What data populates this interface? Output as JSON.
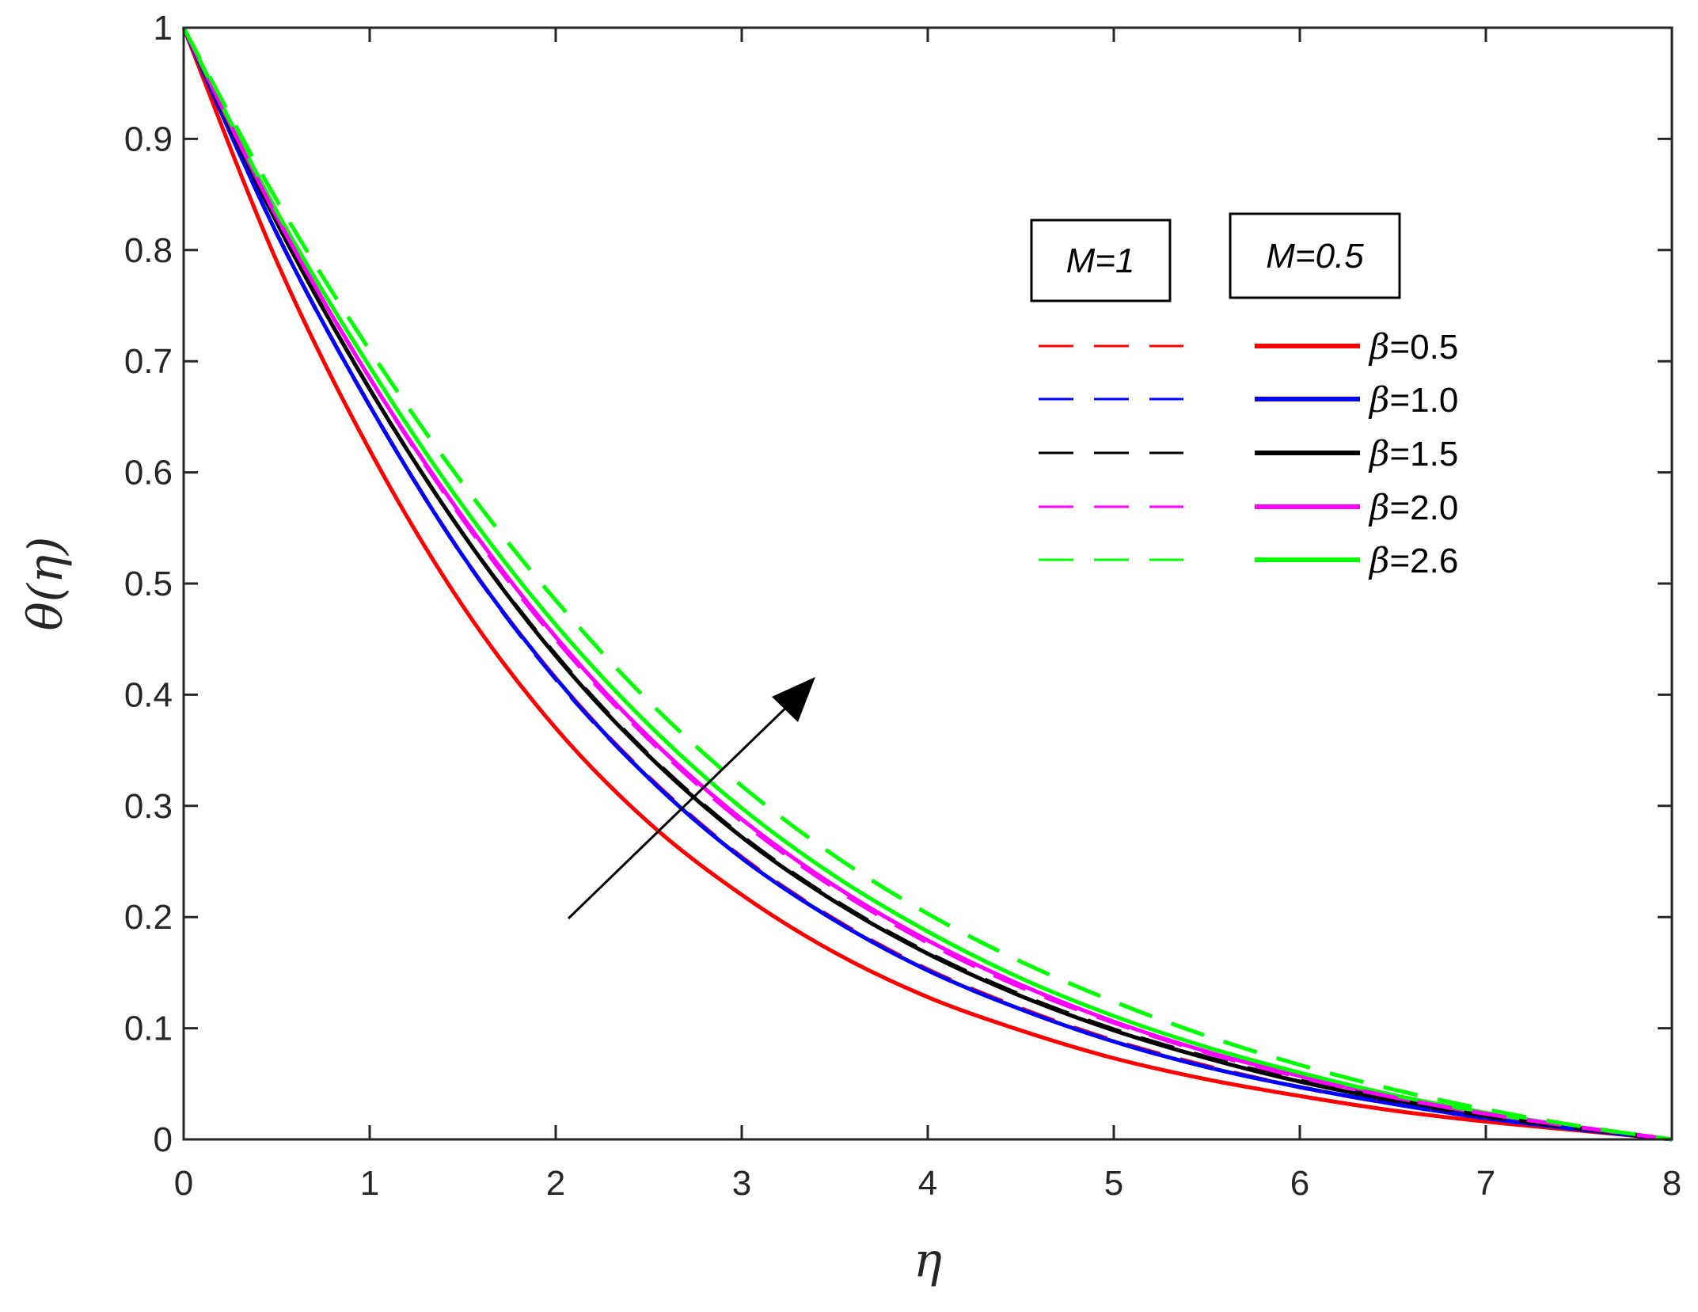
{
  "chart_data": {
    "type": "line",
    "xlabel": "η",
    "ylabel": "θ(η)",
    "xlim": [
      0,
      8
    ],
    "ylim": [
      0,
      1
    ],
    "xticks": [
      "0",
      "1",
      "2",
      "3",
      "4",
      "5",
      "6",
      "7",
      "8"
    ],
    "yticks": [
      "0",
      "0.1",
      "0.2",
      "0.3",
      "0.4",
      "0.5",
      "0.6",
      "0.7",
      "0.8",
      "0.9",
      "1"
    ],
    "grid": false,
    "legend_groups": [
      {
        "title": "M=1",
        "style": "dashed"
      },
      {
        "title": "M=0.5",
        "style": "solid"
      }
    ],
    "legend_entries": [
      "β=0.5",
      "β=1.0",
      "β=1.5",
      "β=2.0",
      "β=2.6"
    ],
    "colors": [
      "#ff0000",
      "#0000ff",
      "#000000",
      "#ff00ff",
      "#00ff00"
    ],
    "annotation": "arrow indicating increasing β",
    "x": [
      0,
      0.5,
      1,
      1.5,
      2,
      2.5,
      3,
      3.5,
      4,
      4.5,
      5,
      5.5,
      6,
      6.5,
      7,
      7.5,
      8
    ],
    "series": [
      {
        "group": "M=0.5",
        "style": "solid",
        "color": "#ff0000",
        "values": [
          1.0,
          0.79,
          0.62,
          0.48,
          0.37,
          0.285,
          0.22,
          0.168,
          0.128,
          0.098,
          0.073,
          0.054,
          0.039,
          0.026,
          0.016,
          0.008,
          0.0
        ]
      },
      {
        "group": "M=0.5",
        "style": "solid",
        "color": "#0000ff",
        "values": [
          1.0,
          0.815,
          0.66,
          0.525,
          0.415,
          0.325,
          0.253,
          0.197,
          0.152,
          0.117,
          0.088,
          0.065,
          0.047,
          0.032,
          0.019,
          0.009,
          0.0
        ]
      },
      {
        "group": "M=0.5",
        "style": "solid",
        "color": "#000000",
        "values": [
          1.0,
          0.825,
          0.675,
          0.545,
          0.435,
          0.345,
          0.272,
          0.214,
          0.167,
          0.129,
          0.098,
          0.073,
          0.052,
          0.035,
          0.021,
          0.01,
          0.0
        ]
      },
      {
        "group": "M=0.5",
        "style": "solid",
        "color": "#ff00ff",
        "values": [
          1.0,
          0.83,
          0.685,
          0.56,
          0.452,
          0.362,
          0.288,
          0.228,
          0.179,
          0.139,
          0.106,
          0.079,
          0.057,
          0.038,
          0.023,
          0.011,
          0.0
        ]
      },
      {
        "group": "M=0.5",
        "style": "solid",
        "color": "#00ff00",
        "values": [
          1.0,
          0.835,
          0.695,
          0.57,
          0.463,
          0.373,
          0.298,
          0.237,
          0.187,
          0.145,
          0.111,
          0.083,
          0.06,
          0.04,
          0.024,
          0.011,
          0.0
        ]
      },
      {
        "group": "M=1",
        "style": "dashed",
        "color": "#ff0000",
        "values": [
          1.0,
          0.815,
          0.66,
          0.525,
          0.415,
          0.326,
          0.254,
          0.198,
          0.153,
          0.118,
          0.089,
          0.066,
          0.047,
          0.032,
          0.019,
          0.009,
          0.0
        ]
      },
      {
        "group": "M=1",
        "style": "dashed",
        "color": "#0000ff",
        "values": [
          1.0,
          0.815,
          0.66,
          0.525,
          0.414,
          0.325,
          0.253,
          0.197,
          0.152,
          0.117,
          0.088,
          0.065,
          0.047,
          0.032,
          0.019,
          0.009,
          0.0
        ]
      },
      {
        "group": "M=1",
        "style": "dashed",
        "color": "#000000",
        "values": [
          1.0,
          0.825,
          0.675,
          0.545,
          0.436,
          0.346,
          0.273,
          0.215,
          0.168,
          0.13,
          0.099,
          0.074,
          0.053,
          0.036,
          0.021,
          0.01,
          0.0
        ]
      },
      {
        "group": "M=1",
        "style": "dashed",
        "color": "#ff00ff",
        "values": [
          1.0,
          0.83,
          0.685,
          0.558,
          0.45,
          0.36,
          0.286,
          0.226,
          0.177,
          0.137,
          0.105,
          0.078,
          0.056,
          0.038,
          0.023,
          0.011,
          0.0
        ]
      },
      {
        "group": "M=1",
        "style": "dashed",
        "color": "#00ff00",
        "values": [
          1.0,
          0.845,
          0.71,
          0.59,
          0.485,
          0.394,
          0.318,
          0.255,
          0.203,
          0.16,
          0.124,
          0.093,
          0.067,
          0.045,
          0.027,
          0.012,
          0.0
        ]
      }
    ]
  }
}
